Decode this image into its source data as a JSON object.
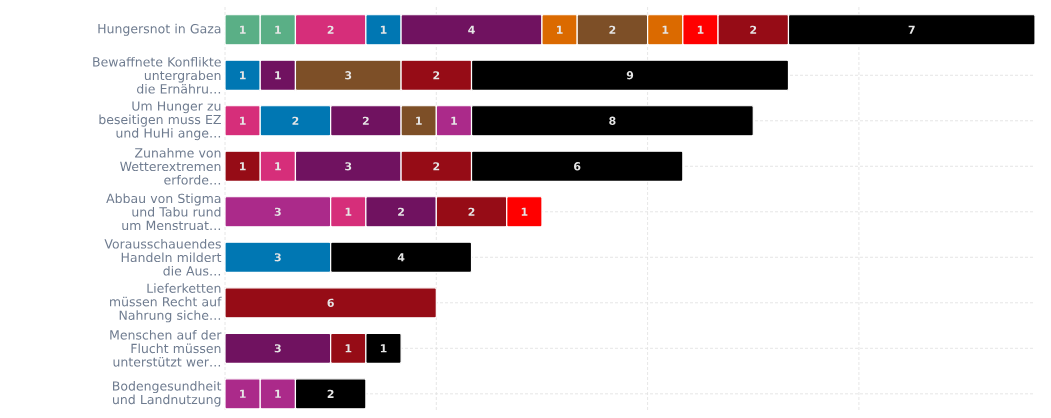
{
  "chart_data": {
    "type": "bar",
    "orientation": "horizontal",
    "stacked": true,
    "data_labels": true,
    "grid": true,
    "tick_labels": "y",
    "categories": [
      "Hungersnot in Gaza",
      "Bewaffnete Konflikte untergraben die Ernähru…",
      "Um Hunger zu beseitigen muss EZ und HuHi ange…",
      "Zunahme von Wetterextremen erforde…",
      "Abbau von Stigma und Tabu rund um Menstruat…",
      "Vorausschauendes Handeln mildert die Aus…",
      "Lieferketten müssen Recht auf Nahrung siche…",
      "Menschen auf der Flucht müssen unterstützt wer…",
      "Bodengesundheit und Landnutzung"
    ],
    "xlim": [
      0,
      23
    ],
    "xticks": [
      {
        "value": 0,
        "label": null
      },
      {
        "value": 6,
        "label": null
      },
      {
        "value": 12,
        "label": null
      },
      {
        "value": 18,
        "label": null
      }
    ],
    "series": [
      {
        "values": [
          1,
          1,
          1,
          1,
          3,
          3,
          6,
          3,
          1
        ],
        "colors": [
          "#5aaf86",
          "#0077b3",
          "#d62e7a",
          "#960c16",
          "#ab2a8a",
          "#0077b3",
          "#960c16",
          "#701260",
          "#ab2a8a"
        ]
      },
      {
        "values": [
          1,
          1,
          2,
          1,
          1,
          4,
          null,
          1,
          1
        ],
        "colors": [
          "#5aaf86",
          "#701260",
          "#0077b3",
          "#d62e7a",
          "#d62e7a",
          "#000000",
          null,
          "#960c16",
          "#ab2a8a"
        ]
      },
      {
        "values": [
          2,
          3,
          2,
          3,
          2,
          null,
          null,
          1,
          2
        ],
        "colors": [
          "#d62e7a",
          "#7d4f27",
          "#701260",
          "#701260",
          "#701260",
          null,
          null,
          "#000000",
          "#000000"
        ]
      },
      {
        "values": [
          1,
          2,
          1,
          2,
          2,
          null,
          null,
          null,
          null
        ],
        "colors": [
          "#0077b3",
          "#960c16",
          "#7d4f27",
          "#960c16",
          "#960c16",
          null,
          null,
          null,
          null
        ]
      },
      {
        "values": [
          4,
          9,
          1,
          6,
          1,
          null,
          null,
          null,
          null
        ],
        "colors": [
          "#701260",
          "#000000",
          "#ab2a8a",
          "#000000",
          "#ff0000",
          null,
          null,
          null,
          null
        ]
      },
      {
        "values": [
          1,
          null,
          8,
          null,
          null,
          null,
          null,
          null,
          null
        ],
        "colors": [
          "#db6a00",
          null,
          "#000000",
          null,
          null,
          null,
          null,
          null,
          null
        ]
      },
      {
        "values": [
          2,
          null,
          null,
          null,
          null,
          null,
          null,
          null,
          null
        ],
        "colors": [
          "#7d4f27",
          null,
          null,
          null,
          null,
          null,
          null,
          null,
          null
        ]
      },
      {
        "values": [
          1,
          null,
          null,
          null,
          null,
          null,
          null,
          null,
          null
        ],
        "colors": [
          "#db6a00",
          null,
          null,
          null,
          null,
          null,
          null,
          null,
          null
        ]
      },
      {
        "values": [
          1,
          null,
          null,
          null,
          null,
          null,
          null,
          null,
          null
        ],
        "colors": [
          "#ff0000",
          null,
          null,
          null,
          null,
          null,
          null,
          null,
          null
        ]
      },
      {
        "values": [
          2,
          null,
          null,
          null,
          null,
          null,
          null,
          null,
          null
        ],
        "colors": [
          "#960c16",
          null,
          null,
          null,
          null,
          null,
          null,
          null,
          null
        ]
      },
      {
        "values": [
          7,
          null,
          null,
          null,
          null,
          null,
          null,
          null,
          null
        ],
        "colors": [
          "#000000",
          null,
          null,
          null,
          null,
          null,
          null,
          null,
          null
        ]
      }
    ]
  }
}
